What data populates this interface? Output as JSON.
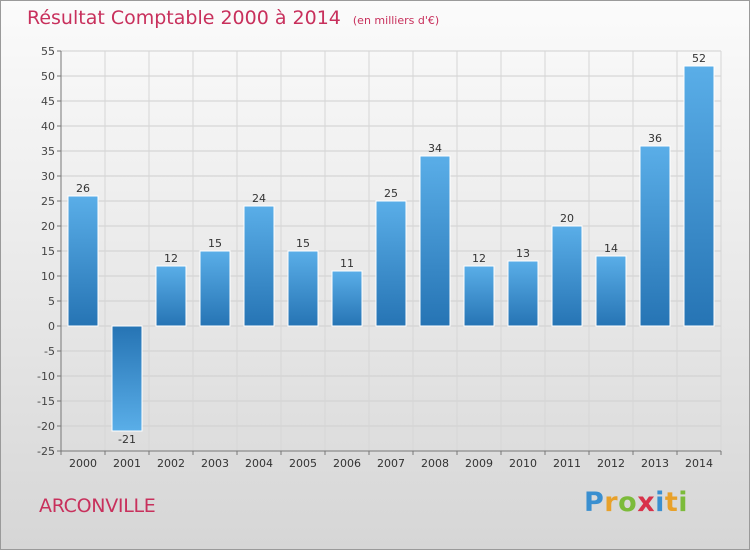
{
  "header": {
    "title": "Résultat Comptable 2000 à 2014",
    "unit": "(en milliers d'€)"
  },
  "footer": {
    "town": "ARCONVILLE",
    "brand": "Proxiti"
  },
  "colors": {
    "title": "#c8305c",
    "bar_light": "#5aaee8",
    "bar_dark": "#2674b4"
  },
  "chart_data": {
    "type": "bar",
    "title": "Résultat Comptable 2000 à 2014",
    "subtitle": "(en milliers d'€)",
    "xlabel": "",
    "ylabel": "",
    "categories": [
      "2000",
      "2001",
      "2002",
      "2003",
      "2004",
      "2005",
      "2006",
      "2007",
      "2008",
      "2009",
      "2010",
      "2011",
      "2012",
      "2013",
      "2014"
    ],
    "values": [
      26,
      -21,
      12,
      15,
      24,
      15,
      11,
      25,
      34,
      12,
      13,
      20,
      14,
      36,
      52
    ],
    "ylim": [
      -25,
      55
    ],
    "yticks": [
      -25,
      -20,
      -15,
      -10,
      -5,
      0,
      5,
      10,
      15,
      20,
      25,
      30,
      35,
      40,
      45,
      50,
      55
    ],
    "grid": true
  }
}
